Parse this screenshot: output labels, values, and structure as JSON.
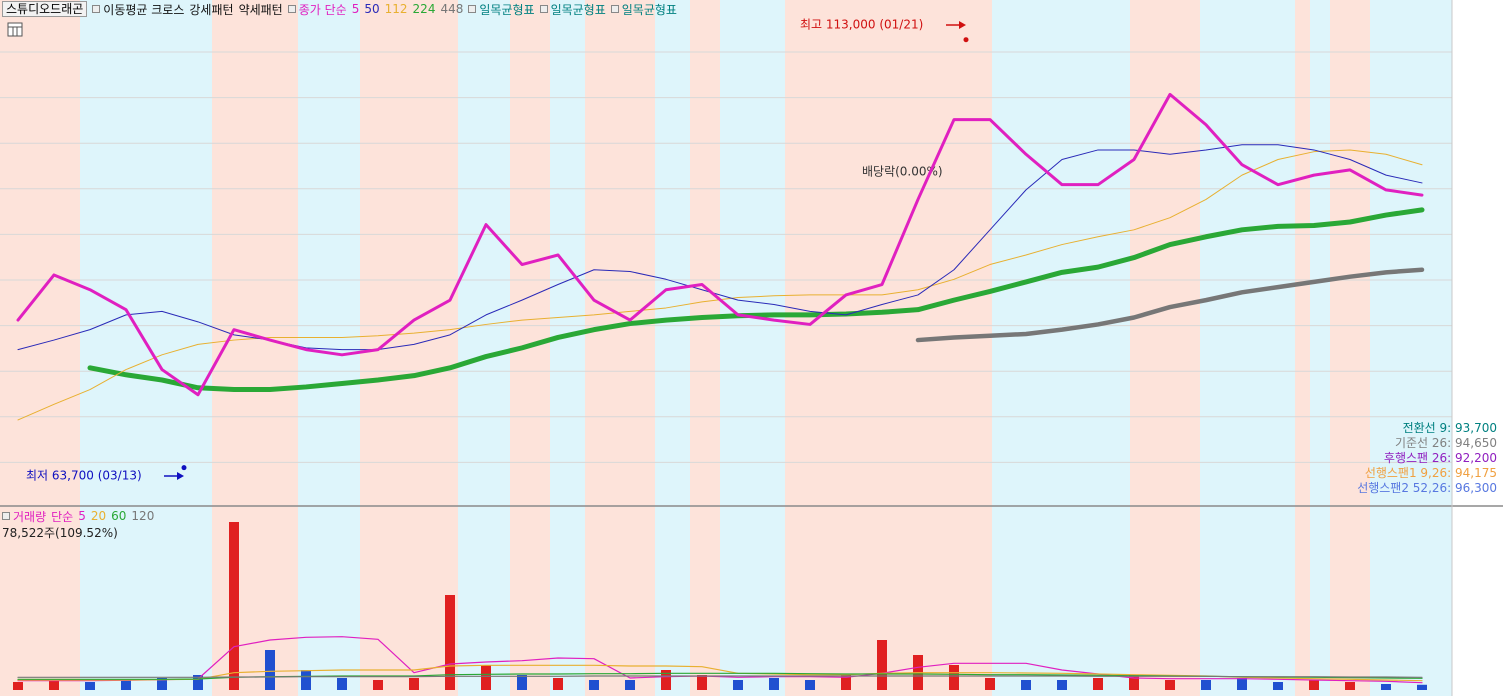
{
  "chart_data": [
    {
      "type": "line",
      "title": "스튜디오드래곤",
      "legend_items": [
        "이동평균 크로스",
        "강세패턴",
        "약세패턴"
      ],
      "ma_label": "종가 단순",
      "ichimoku_labels": [
        "일목균형표",
        "일목균형표",
        "일목균형표"
      ],
      "categories": [
        null,
        null,
        null,
        null,
        null,
        null,
        null,
        null,
        null,
        null,
        null,
        null,
        null,
        null,
        null,
        null,
        null,
        null,
        null,
        null,
        null,
        null,
        null,
        null,
        null,
        null,
        null,
        null,
        null,
        null,
        null,
        null,
        null,
        null,
        null,
        null,
        null,
        null,
        null,
        null
      ],
      "series": [
        {
          "name": "5",
          "color": "#e020c0",
          "values": [
            80700,
            85900,
            84200,
            81900,
            75000,
            72100,
            79600,
            78400,
            77300,
            76700,
            77300,
            80700,
            83000,
            91700,
            87100,
            88200,
            83000,
            80700,
            84200,
            84800,
            81300,
            80700,
            80200,
            83600,
            84800,
            94600,
            103800,
            103800,
            99800,
            96300,
            96300,
            99200,
            106700,
            103200,
            98600,
            96300,
            97400,
            98000,
            95700,
            95100
          ]
        },
        {
          "name": "50",
          "color": "#2a2ab8",
          "values": [
            77300,
            78400,
            79600,
            81300,
            81700,
            80500,
            79000,
            78400,
            77500,
            77300,
            77300,
            77900,
            79000,
            81300,
            83000,
            84800,
            86500,
            86300,
            85400,
            84200,
            83000,
            82500,
            81700,
            81300,
            82500,
            83600,
            86500,
            91100,
            95700,
            99200,
            100300,
            100300,
            99800,
            100300,
            100900,
            100900,
            100300,
            99200,
            97400,
            96500
          ]
        },
        {
          "name": "112",
          "color": "#e8b030",
          "values": [
            69200,
            71000,
            72700,
            75000,
            76700,
            77900,
            78400,
            78700,
            78700,
            78700,
            78900,
            79200,
            79600,
            80200,
            80700,
            81000,
            81300,
            81700,
            82100,
            82800,
            83300,
            83500,
            83600,
            83600,
            83600,
            84200,
            85400,
            87100,
            88200,
            89400,
            90300,
            91100,
            92500,
            94600,
            97400,
            99200,
            100100,
            100300,
            99800,
            98600
          ]
        },
        {
          "name": "224",
          "color": "#2aa836",
          "values": [
            null,
            null,
            75200,
            74400,
            73800,
            72900,
            72700,
            72700,
            73000,
            73400,
            73800,
            74300,
            75200,
            76500,
            77500,
            78700,
            79600,
            80300,
            80700,
            81000,
            81200,
            81300,
            81300,
            81400,
            81600,
            81900,
            83000,
            84000,
            85100,
            86200,
            86800,
            87900,
            89400,
            90300,
            91100,
            91500,
            91600,
            92000,
            92800,
            93400
          ]
        },
        {
          "name": "448",
          "color": "#777777",
          "values": [
            null,
            null,
            null,
            null,
            null,
            null,
            null,
            null,
            null,
            null,
            null,
            null,
            null,
            null,
            null,
            null,
            null,
            null,
            null,
            null,
            null,
            null,
            null,
            null,
            null,
            78400,
            78700,
            78900,
            79100,
            79600,
            80200,
            81000,
            82200,
            83000,
            83900,
            84500,
            85100,
            85700,
            86200,
            86500
          ]
        }
      ],
      "ylim": [
        59400,
        115500
      ],
      "annotations": [
        {
          "label": "최고 113,000 (01/21)",
          "value": 113000
        },
        {
          "label": "최저 63,700 (03/13)",
          "value": 63700
        },
        {
          "label": "배당락(0.00%)"
        }
      ],
      "indicator_labels": [
        {
          "text": "전환선 9: 93,700",
          "color": "#008080"
        },
        {
          "text": "기준선 26: 94,650",
          "color": "#808080"
        },
        {
          "text": "후행스팬 26: 92,200",
          "color": "#9020c0"
        },
        {
          "text": "선행스팬1 9,26: 94,175",
          "color": "#f0a040"
        },
        {
          "text": "선행스팬2 52,26: 96,300",
          "color": "#5878e0"
        }
      ]
    },
    {
      "type": "bar",
      "title": "거래량",
      "ma_label": "단순",
      "summary": "78,522주(109.52%)",
      "categories": [
        null,
        null,
        null,
        null,
        null,
        null,
        null,
        null,
        null,
        null,
        null,
        null,
        null,
        null,
        null,
        null,
        null,
        null,
        null,
        null,
        null,
        null,
        null,
        null,
        null,
        null,
        null,
        null,
        null,
        null,
        null,
        null,
        null,
        null,
        null,
        null,
        null,
        null,
        null,
        null
      ],
      "values": [
        120000,
        150000,
        120000,
        150000,
        180000,
        225000,
        2520000,
        600000,
        300000,
        180000,
        150000,
        180000,
        1425000,
        375000,
        225000,
        180000,
        150000,
        150000,
        300000,
        225000,
        150000,
        180000,
        150000,
        225000,
        750000,
        525000,
        375000,
        180000,
        150000,
        150000,
        180000,
        225000,
        150000,
        150000,
        180000,
        120000,
        150000,
        120000,
        90000,
        78522
      ],
      "up_color": "#e02020",
      "down_color": "#2050d0",
      "series": [
        {
          "name": "5",
          "color": "#e020c0",
          "values": [
            140000,
            140000,
            140000,
            146000,
            156000,
            165000,
            650000,
            750000,
            790000,
            800000,
            760000,
            260000,
            390000,
            420000,
            440000,
            480000,
            470000,
            180000,
            200000,
            210000,
            190000,
            200000,
            200000,
            190000,
            250000,
            340000,
            400000,
            400000,
            400000,
            300000,
            240000,
            180000,
            170000,
            170000,
            170000,
            160000,
            150000,
            140000,
            130000,
            110000
          ]
        },
        {
          "name": "20",
          "color": "#e8b030",
          "values": [
            150000,
            150000,
            150000,
            150000,
            155000,
            160000,
            260000,
            280000,
            290000,
            300000,
            300000,
            300000,
            360000,
            370000,
            370000,
            370000,
            370000,
            360000,
            360000,
            350000,
            250000,
            240000,
            230000,
            230000,
            250000,
            260000,
            260000,
            260000,
            255000,
            250000,
            240000,
            230000,
            220000,
            210000,
            190000,
            180000,
            170000,
            160000,
            150000,
            140000
          ]
        },
        {
          "name": "60",
          "color": "#2aa836",
          "values": [
            160000,
            160000,
            160000,
            160000,
            160000,
            165000,
            190000,
            200000,
            205000,
            210000,
            210000,
            210000,
            230000,
            235000,
            240000,
            240000,
            245000,
            245000,
            250000,
            250000,
            250000,
            250000,
            245000,
            240000,
            240000,
            240000,
            235000,
            230000,
            230000,
            225000,
            220000,
            215000,
            210000,
            205000,
            200000,
            195000,
            190000,
            185000,
            180000,
            175000
          ]
        },
        {
          "name": "120",
          "color": "#777777",
          "values": [
            190000,
            190000,
            190000,
            190000,
            190000,
            190000,
            195000,
            195000,
            200000,
            200000,
            200000,
            200000,
            205000,
            205000,
            205000,
            205000,
            210000,
            210000,
            210000,
            210000,
            210000,
            210000,
            210000,
            210000,
            210000,
            210000,
            210000,
            210000,
            210000,
            210000,
            205000,
            205000,
            205000,
            205000,
            200000,
            200000,
            200000,
            195000,
            195000,
            190000
          ]
        }
      ],
      "ylim": [
        0,
        2550000
      ]
    }
  ]
}
